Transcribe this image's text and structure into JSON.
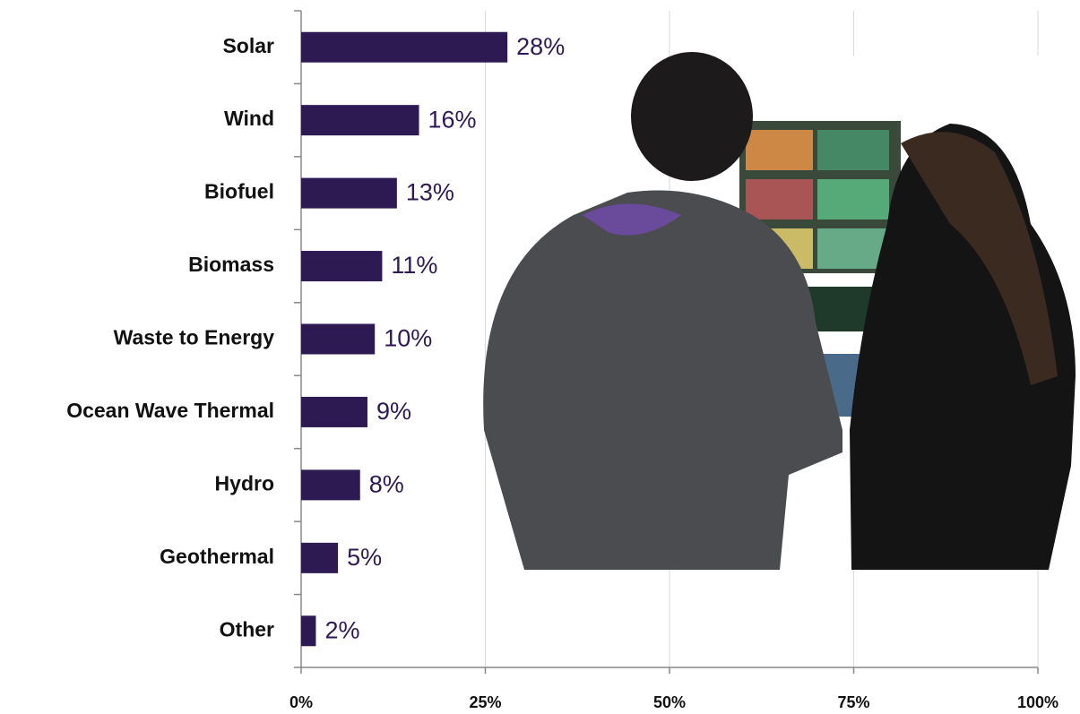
{
  "chart_data": {
    "type": "bar",
    "orientation": "horizontal",
    "categories": [
      "Solar",
      "Wind",
      "Biofuel",
      "Biomass",
      "Waste to Energy",
      "Ocean Wave Thermal",
      "Hydro",
      "Geothermal",
      "Other"
    ],
    "values": [
      28,
      16,
      13,
      11,
      10,
      9,
      8,
      5,
      2
    ],
    "value_labels": [
      "28%",
      "16%",
      "13%",
      "11%",
      "10%",
      "9%",
      "8%",
      "5%",
      "2%"
    ],
    "color": "#2e1a52",
    "xlim": [
      0,
      100
    ],
    "xticks": [
      {
        "value": 0,
        "label": "0%"
      },
      {
        "value": 25,
        "label": "25%"
      },
      {
        "value": 50,
        "label": "50%"
      },
      {
        "value": 75,
        "label": "75%"
      },
      {
        "value": 100,
        "label": "100%"
      }
    ],
    "grid": true
  }
}
